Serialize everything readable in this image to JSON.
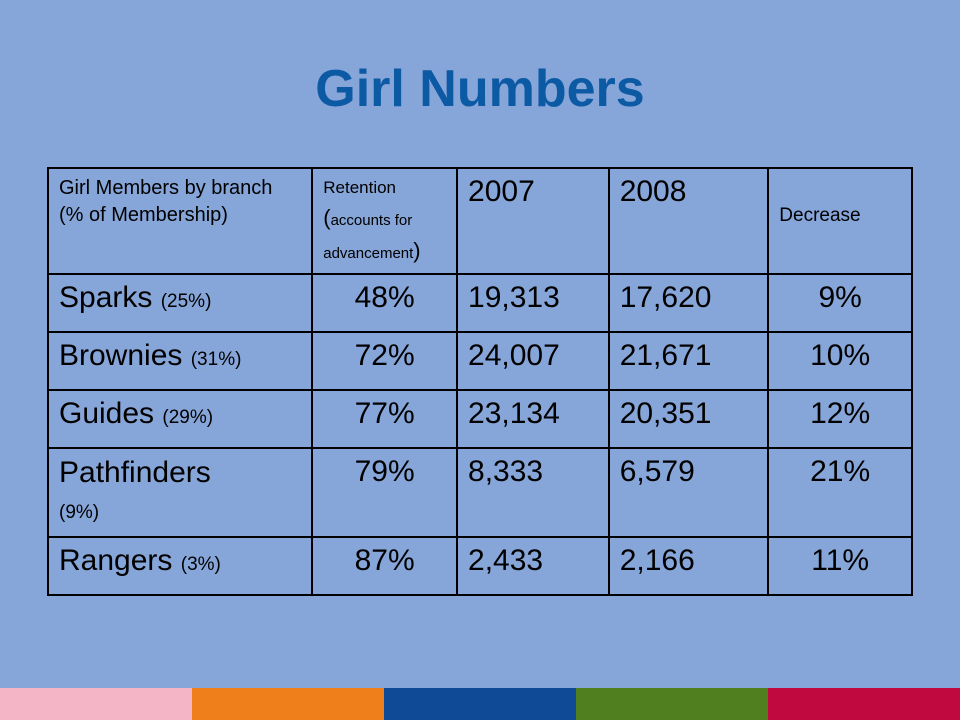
{
  "title": "Girl Numbers",
  "table": {
    "headers": {
      "branch": "Girl Members by branch (% of Membership)",
      "retention_main": "Retention",
      "retention_open": "(",
      "retention_sub": "accounts for advancement",
      "retention_close": ")",
      "year1": "2007",
      "year2": "2008",
      "decrease": "Decrease"
    },
    "rows": [
      {
        "name": "Sparks",
        "share": "(25%)",
        "retention": "48%",
        "y2007": "19,313",
        "y2008": "17,620",
        "decrease": "9%"
      },
      {
        "name": "Brownies",
        "share": "(31%)",
        "retention": "72%",
        "y2007": "24,007",
        "y2008": "21,671",
        "decrease": "10%"
      },
      {
        "name": "Guides",
        "share": "(29%)",
        "retention": "77%",
        "y2007": "23,134",
        "y2008": "20,351",
        "decrease": "12%"
      },
      {
        "name": "Pathfinders",
        "share": "(9%)",
        "retention": "79%",
        "y2007": "8,333",
        "y2008": "6,579",
        "decrease": "21%"
      },
      {
        "name": "Rangers",
        "share": "(3%)",
        "retention": "87%",
        "y2007": "2,433",
        "y2008": "2,166",
        "decrease": "11%"
      }
    ]
  },
  "colors": {
    "background": "#86a5d8",
    "title": "#0c59a4",
    "stripes": [
      "#f4b6c6",
      "#ef7f1a",
      "#0e4a96",
      "#4f7f1f",
      "#c0093e"
    ]
  }
}
